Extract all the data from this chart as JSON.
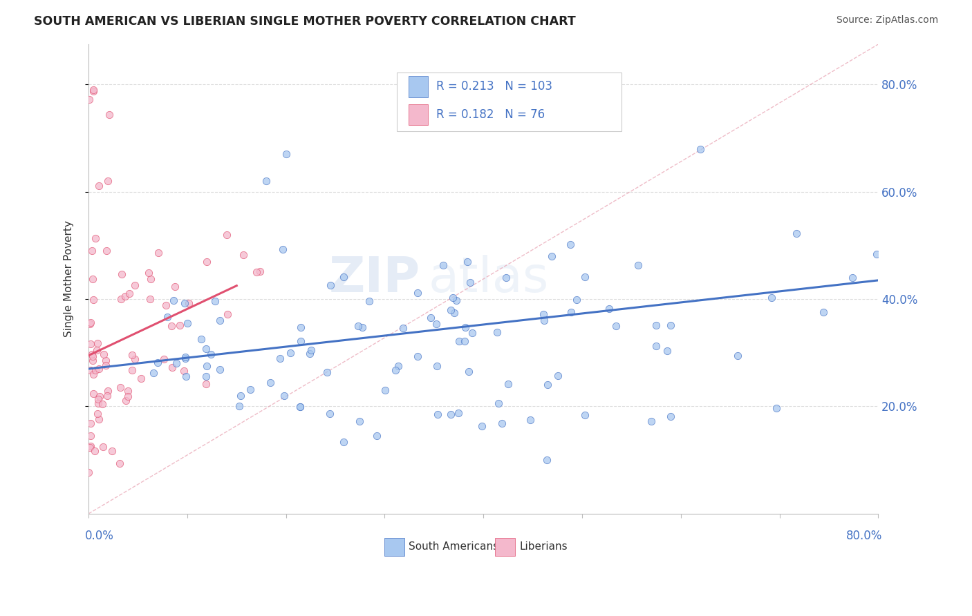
{
  "title": "SOUTH AMERICAN VS LIBERIAN SINGLE MOTHER POVERTY CORRELATION CHART",
  "source": "Source: ZipAtlas.com",
  "ylabel": "Single Mother Poverty",
  "legend_label1": "South Americans",
  "legend_label2": "Liberians",
  "R1": 0.213,
  "N1": 103,
  "R2": 0.182,
  "N2": 76,
  "xlim": [
    0.0,
    0.8
  ],
  "ylim": [
    0.0,
    0.875
  ],
  "yticks": [
    0.2,
    0.4,
    0.6,
    0.8
  ],
  "color_blue": "#a8c8f0",
  "color_pink": "#f4b8cc",
  "color_blue_line": "#4472c4",
  "color_pink_line": "#e05070",
  "color_ref_line": "#e8a0b0",
  "watermark_zip": "ZIP",
  "watermark_atlas": "atlas",
  "blue_trend_x0": 0.0,
  "blue_trend_y0": 0.27,
  "blue_trend_x1": 0.8,
  "blue_trend_y1": 0.435,
  "pink_trend_x0": 0.0,
  "pink_trend_y0": 0.295,
  "pink_trend_x1": 0.15,
  "pink_trend_y1": 0.425
}
